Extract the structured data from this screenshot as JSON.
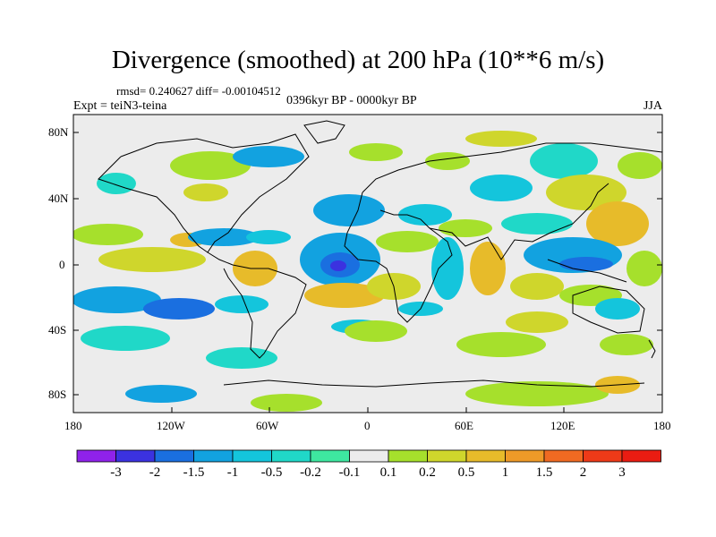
{
  "title": "Divergence (smoothed) at 200 hPa (10**6 m/s)",
  "stats": "rmsd= 0.240627 diff= -0.00104512",
  "experiment": "Expt = teiN3-teina",
  "period": "0396kyr BP - 0000kyr BP",
  "season": "JJA",
  "map": {
    "lat_labels": [
      "80N",
      "40N",
      "0",
      "40S",
      "80S"
    ],
    "lon_labels": [
      "180",
      "120W",
      "60W",
      "0",
      "60E",
      "120E",
      "180"
    ]
  },
  "colorbar": {
    "labels": [
      "-3",
      "-2",
      "-1.5",
      "-1",
      "-0.5",
      "-0.2",
      "-0.1",
      "0.1",
      "0.2",
      "0.5",
      "1",
      "1.5",
      "2",
      "3"
    ],
    "colors": [
      "#8f22ea",
      "#3b32e0",
      "#1a6fe0",
      "#12a2e0",
      "#14c5dc",
      "#20d8c8",
      "#3ee7a0",
      "#ececec",
      "#a6e02c",
      "#cfd62c",
      "#e7bb2a",
      "#ee9a28",
      "#f06a22",
      "#ee3a18",
      "#ea1c12"
    ]
  },
  "legend_colors": {
    "neutral": "#ececec"
  }
}
